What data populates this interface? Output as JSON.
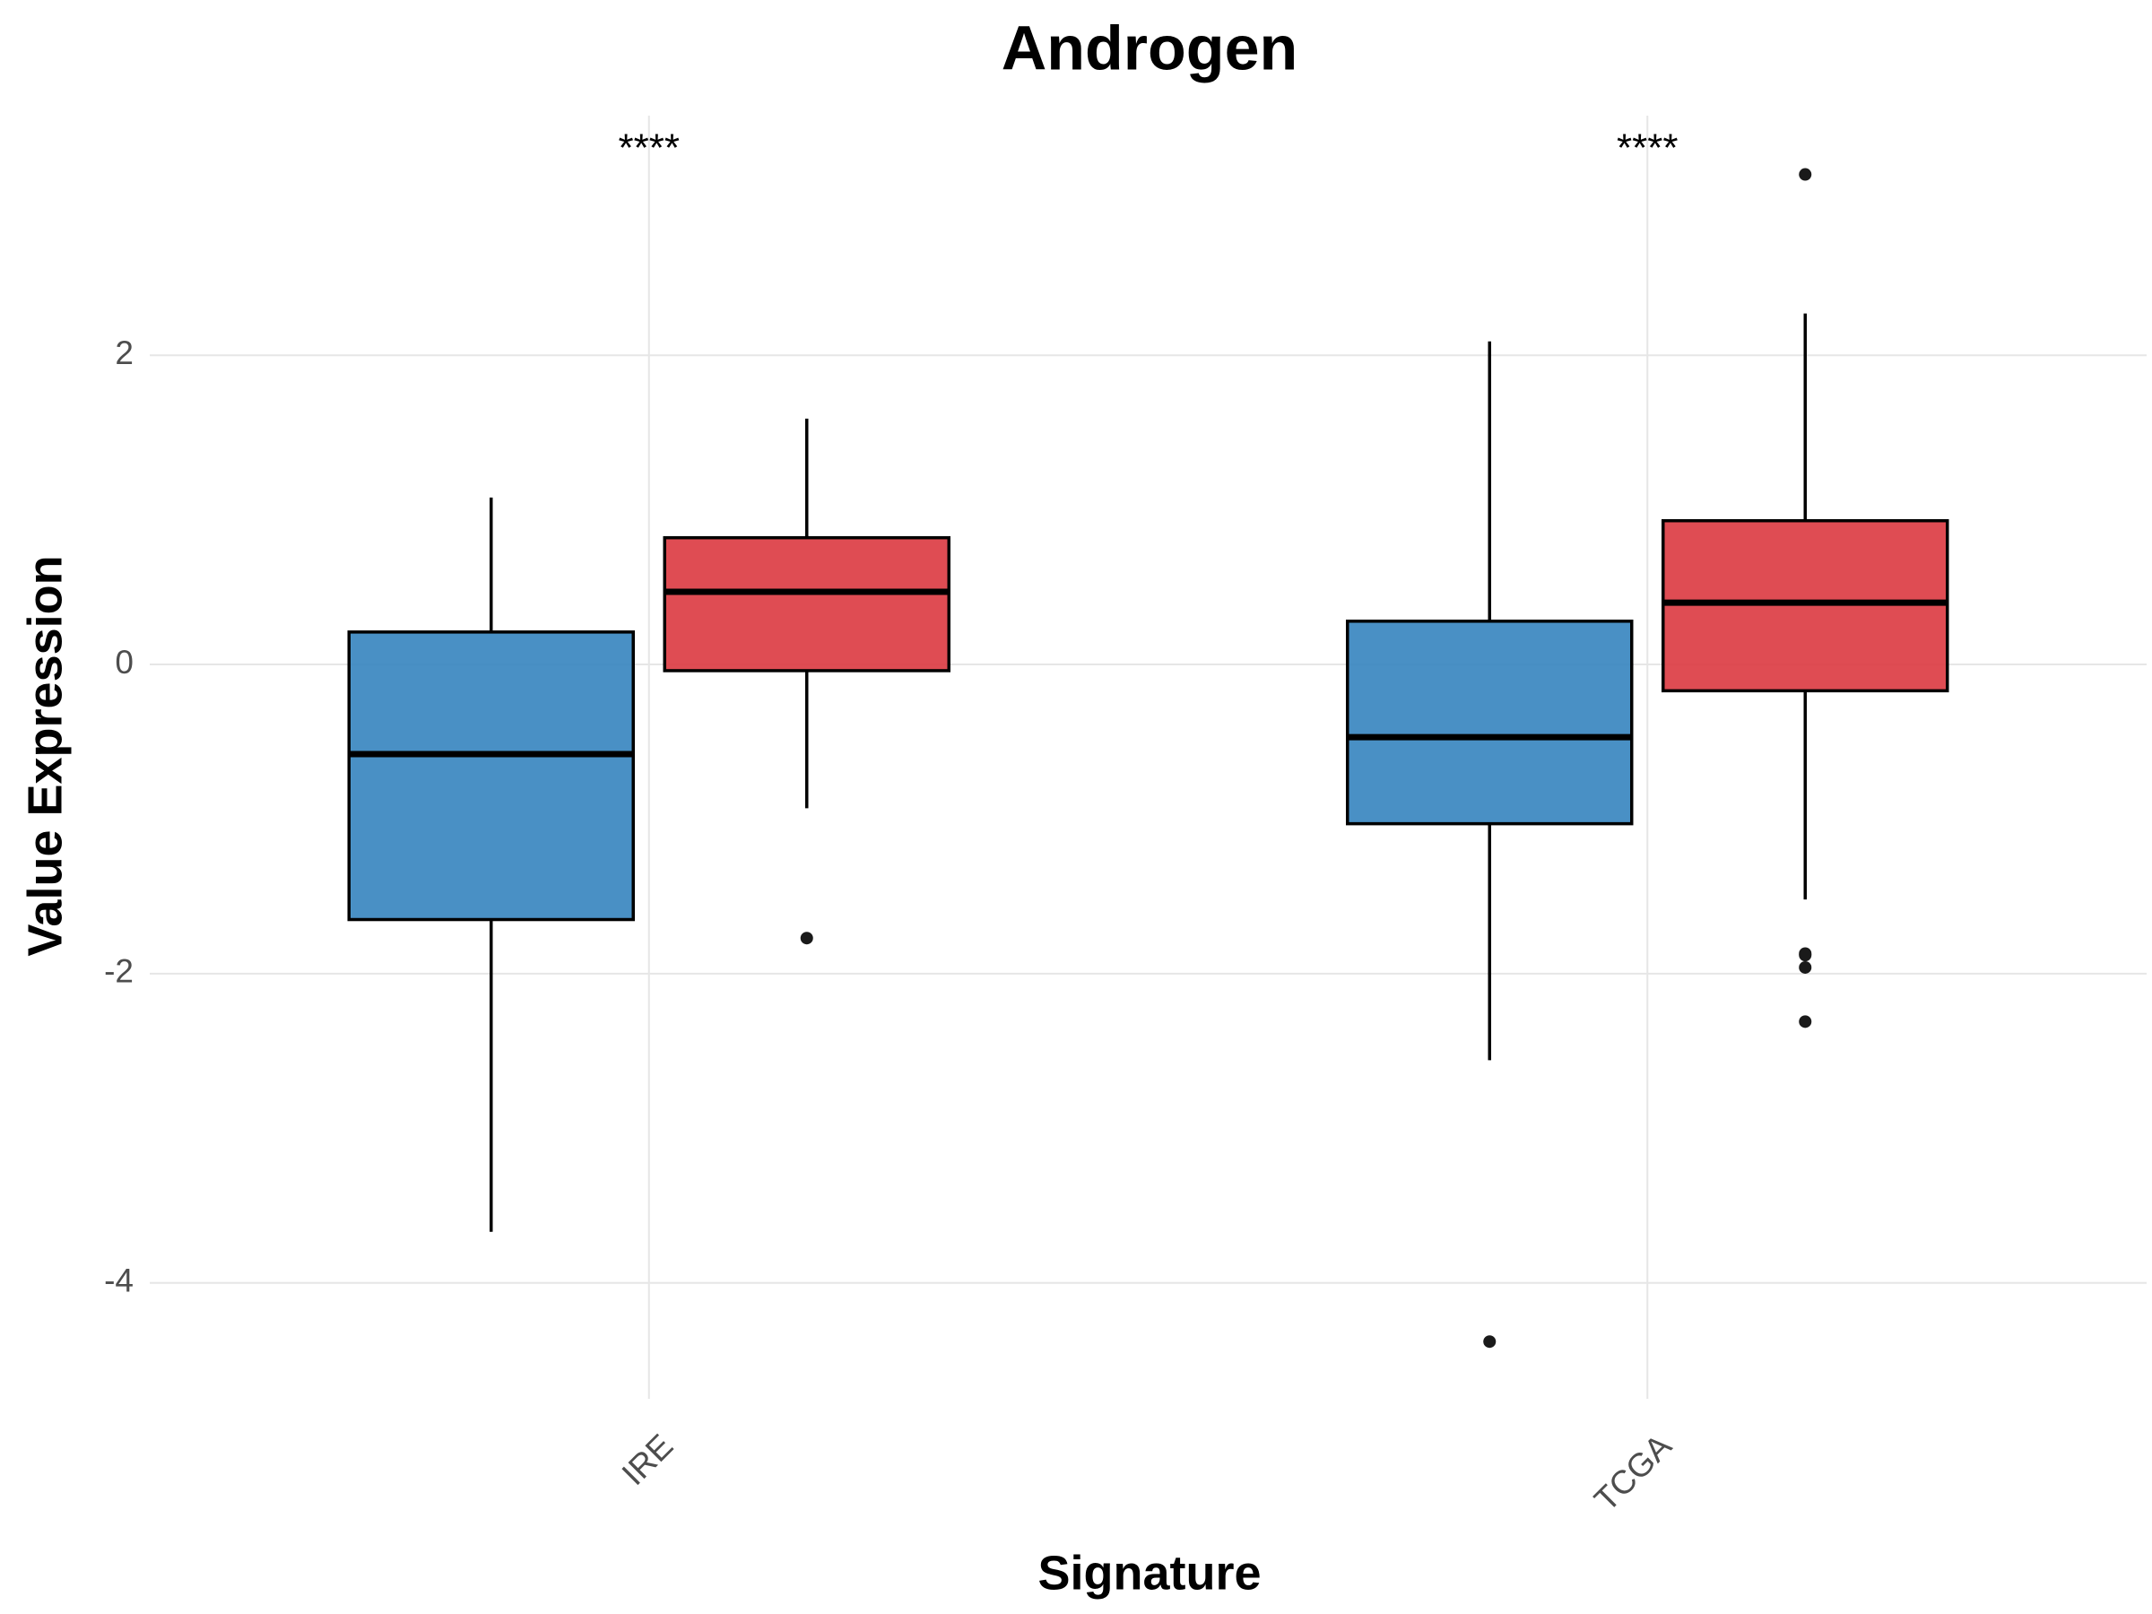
{
  "chart_data": {
    "type": "box",
    "title": "Androgen",
    "x_label": "Signature",
    "y_label": "Value Expression",
    "categories": [
      "IRE",
      "TCGA"
    ],
    "annotations": [
      "****",
      "****"
    ],
    "series": [
      {
        "color": "#3a87c0",
        "boxes": [
          {
            "whislo": -3.67,
            "q1": -1.65,
            "med": -0.58,
            "q3": 0.21,
            "whishi": 1.08,
            "fliers": []
          },
          {
            "whislo": -2.56,
            "q1": -1.03,
            "med": -0.47,
            "q3": 0.28,
            "whishi": 2.09,
            "fliers": [
              -4.38
            ]
          }
        ]
      },
      {
        "color": "#dc3d44",
        "boxes": [
          {
            "whislo": -0.93,
            "q1": -0.04,
            "med": 0.47,
            "q3": 0.82,
            "whishi": 1.59,
            "fliers": [
              -1.77
            ]
          },
          {
            "whislo": -1.52,
            "q1": -0.17,
            "med": 0.4,
            "q3": 0.93,
            "whishi": 2.27,
            "fliers": [
              3.17,
              -1.87,
              -1.88,
              -1.96,
              -2.31
            ]
          }
        ]
      }
    ],
    "ylim": [
      -4.75,
      3.55
    ],
    "yticks": [
      -4,
      -2,
      0,
      2
    ],
    "grid": true
  }
}
